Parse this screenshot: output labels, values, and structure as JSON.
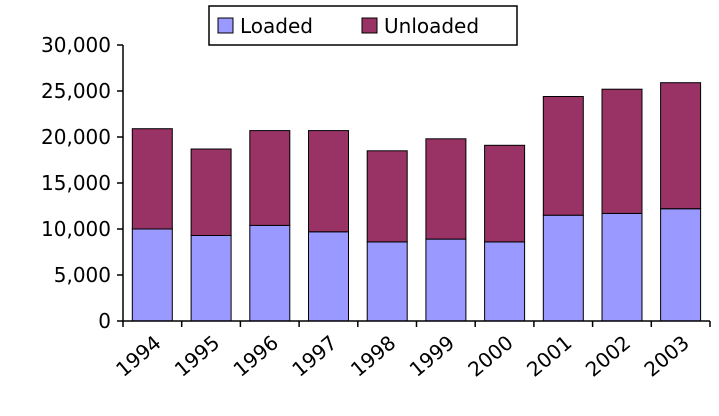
{
  "chart_data": {
    "type": "bar",
    "stacked": true,
    "title": "",
    "xlabel": "",
    "ylabel": "",
    "categories": [
      "1994",
      "1995",
      "1996",
      "1997",
      "1998",
      "1999",
      "2000",
      "2001",
      "2002",
      "2003"
    ],
    "series": [
      {
        "name": "Loaded",
        "color": "#9999ff",
        "values": [
          10000,
          9300,
          10400,
          9700,
          8600,
          8900,
          8600,
          11500,
          11700,
          12200
        ]
      },
      {
        "name": "Unloaded",
        "color": "#993366",
        "values": [
          10900,
          9400,
          10300,
          11000,
          9900,
          10900,
          10500,
          12900,
          13500,
          13700
        ]
      }
    ],
    "ylim": [
      0,
      30000
    ],
    "yticks": [
      0,
      5000,
      10000,
      15000,
      20000,
      25000,
      30000
    ],
    "ytick_labels": [
      "0",
      "5,000",
      "10,000",
      "15,000",
      "20,000",
      "25,000",
      "30,000"
    ],
    "grid": false,
    "legend": "top-center"
  }
}
